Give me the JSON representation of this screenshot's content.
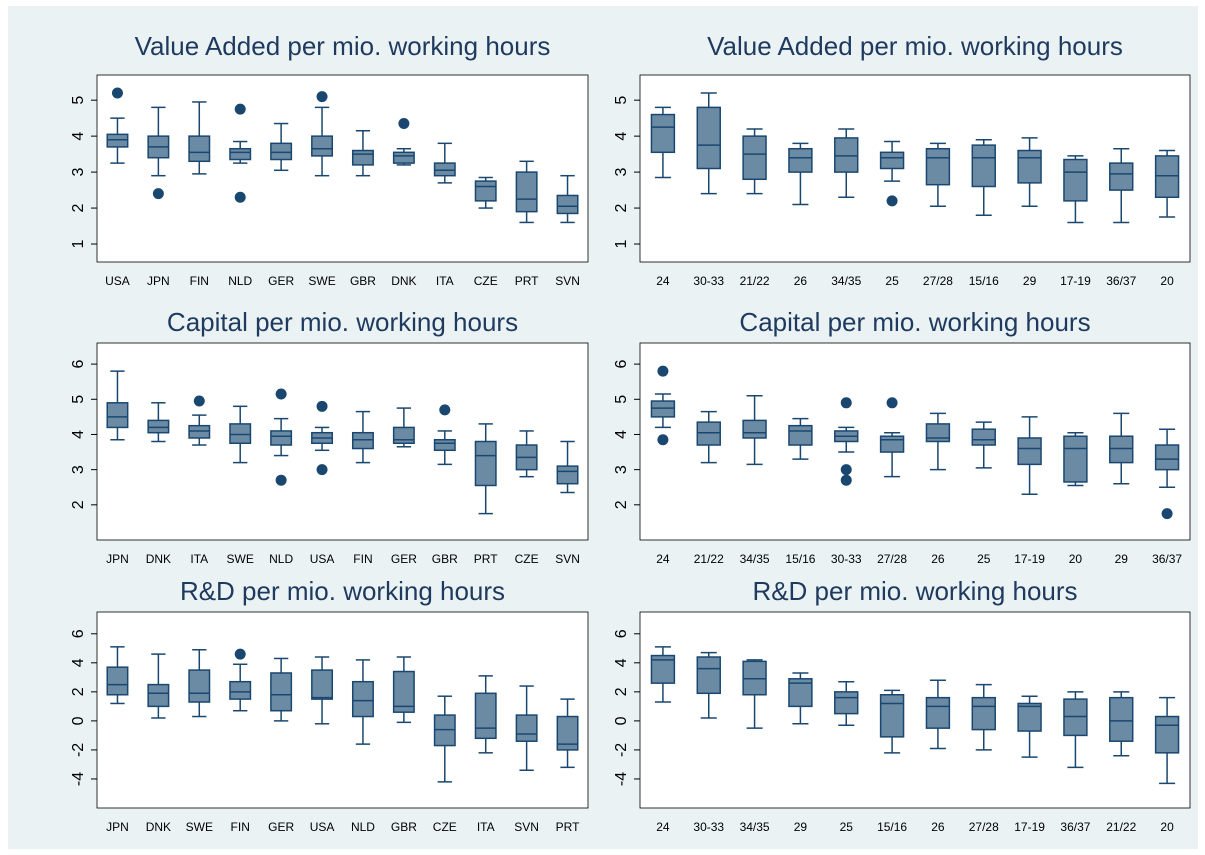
{
  "chart_data": [
    {
      "type": "box",
      "title": "Value Added per mio. working hours",
      "categories": [
        "USA",
        "JPN",
        "FIN",
        "NLD",
        "GER",
        "SWE",
        "GBR",
        "DNK",
        "ITA",
        "CZE",
        "PRT",
        "SVN"
      ],
      "whisker_low": [
        3.25,
        2.9,
        2.95,
        3.25,
        3.05,
        2.9,
        2.9,
        3.2,
        2.7,
        2.0,
        1.6,
        1.6
      ],
      "q1": [
        3.7,
        3.4,
        3.3,
        3.35,
        3.35,
        3.45,
        3.2,
        3.25,
        2.9,
        2.2,
        1.9,
        1.85
      ],
      "median": [
        3.9,
        3.7,
        3.55,
        3.55,
        3.55,
        3.65,
        3.5,
        3.45,
        3.05,
        2.6,
        2.25,
        2.05
      ],
      "q3": [
        4.05,
        4.0,
        4.0,
        3.65,
        3.8,
        4.0,
        3.6,
        3.55,
        3.25,
        2.75,
        3.0,
        2.35
      ],
      "whisker_high": [
        4.5,
        4.8,
        4.95,
        3.85,
        4.35,
        4.8,
        4.15,
        3.65,
        3.8,
        2.85,
        3.3,
        2.9
      ],
      "outliers": [
        [
          5.2
        ],
        [
          2.4
        ],
        [],
        [
          4.75,
          2.3
        ],
        [],
        [
          5.1
        ],
        [],
        [
          4.35
        ],
        [],
        [],
        [],
        []
      ],
      "ylim": [
        0.5,
        5.7
      ],
      "yticks": [
        1,
        2,
        3,
        4,
        5
      ],
      "color": "#6b8aa4",
      "line_color": "#1a476f"
    },
    {
      "type": "box",
      "title": "Value Added per mio. working hours",
      "categories": [
        "24",
        "30-33",
        "21/22",
        "26",
        "34/35",
        "25",
        "27/28",
        "15/16",
        "29",
        "17-19",
        "36/37",
        "20"
      ],
      "whisker_low": [
        2.85,
        2.4,
        2.4,
        2.1,
        2.3,
        2.75,
        2.05,
        1.8,
        2.05,
        1.6,
        1.6,
        1.75
      ],
      "q1": [
        3.55,
        3.1,
        2.8,
        3.0,
        3.0,
        3.1,
        2.65,
        2.6,
        2.7,
        2.2,
        2.5,
        2.3
      ],
      "median": [
        4.25,
        3.75,
        3.5,
        3.4,
        3.45,
        3.4,
        3.4,
        3.4,
        3.4,
        3.0,
        2.95,
        2.9
      ],
      "q3": [
        4.6,
        4.8,
        4.0,
        3.65,
        3.95,
        3.55,
        3.65,
        3.75,
        3.6,
        3.35,
        3.25,
        3.45
      ],
      "whisker_high": [
        4.8,
        5.2,
        4.2,
        3.8,
        4.2,
        3.85,
        3.8,
        3.9,
        3.95,
        3.45,
        3.65,
        3.6
      ],
      "outliers": [
        [],
        [],
        [],
        [],
        [],
        [
          2.2
        ],
        [],
        [],
        [],
        [],
        [],
        []
      ],
      "ylim": [
        0.5,
        5.7
      ],
      "yticks": [
        1,
        2,
        3,
        4,
        5
      ],
      "color": "#6b8aa4",
      "line_color": "#1a476f"
    },
    {
      "type": "box",
      "title": "Capital per mio. working hours",
      "categories": [
        "JPN",
        "DNK",
        "ITA",
        "SWE",
        "NLD",
        "USA",
        "FIN",
        "GER",
        "GBR",
        "PRT",
        "CZE",
        "SVN"
      ],
      "whisker_low": [
        3.85,
        3.8,
        3.7,
        3.2,
        3.4,
        3.55,
        3.2,
        3.65,
        3.15,
        1.75,
        2.8,
        2.35
      ],
      "q1": [
        4.2,
        4.05,
        3.9,
        3.75,
        3.7,
        3.75,
        3.6,
        3.75,
        3.55,
        2.55,
        3.0,
        2.6
      ],
      "median": [
        4.5,
        4.2,
        4.1,
        4.0,
        3.95,
        3.9,
        3.85,
        3.85,
        3.75,
        3.4,
        3.35,
        2.95
      ],
      "q3": [
        4.9,
        4.4,
        4.25,
        4.3,
        4.1,
        4.05,
        4.05,
        4.2,
        3.85,
        3.8,
        3.7,
        3.1
      ],
      "whisker_high": [
        5.8,
        4.9,
        4.55,
        4.8,
        4.45,
        4.2,
        4.65,
        4.75,
        4.1,
        4.3,
        4.1,
        3.8
      ],
      "outliers": [
        [],
        [],
        [
          4.95
        ],
        [],
        [
          5.15,
          2.7
        ],
        [
          4.8,
          3.0
        ],
        [],
        [],
        [
          4.7
        ],
        [],
        [],
        []
      ],
      "ylim": [
        1.0,
        6.6
      ],
      "yticks": [
        2,
        3,
        4,
        5,
        6
      ],
      "color": "#6b8aa4",
      "line_color": "#1a476f"
    },
    {
      "type": "box",
      "title": "Capital per mio. working hours",
      "categories": [
        "24",
        "21/22",
        "34/35",
        "15/16",
        "30-33",
        "27/28",
        "26",
        "25",
        "17-19",
        "20",
        "29",
        "36/37"
      ],
      "whisker_low": [
        4.2,
        3.2,
        3.15,
        3.3,
        3.5,
        2.8,
        3.0,
        3.05,
        2.3,
        2.55,
        2.6,
        2.5
      ],
      "q1": [
        4.5,
        3.7,
        3.9,
        3.7,
        3.8,
        3.5,
        3.8,
        3.7,
        3.15,
        2.65,
        3.2,
        3.0
      ],
      "median": [
        4.75,
        4.05,
        4.05,
        4.1,
        3.95,
        3.85,
        3.9,
        3.85,
        3.6,
        3.6,
        3.6,
        3.3
      ],
      "q3": [
        4.95,
        4.35,
        4.4,
        4.25,
        4.1,
        3.95,
        4.3,
        4.15,
        3.9,
        3.95,
        3.95,
        3.7
      ],
      "whisker_high": [
        5.15,
        4.65,
        5.1,
        4.45,
        4.2,
        4.05,
        4.6,
        4.35,
        4.5,
        4.05,
        4.6,
        4.15
      ],
      "outliers": [
        [
          5.8,
          3.85
        ],
        [],
        [],
        [],
        [
          4.9,
          3.0,
          2.7
        ],
        [
          4.9
        ],
        [],
        [],
        [],
        [],
        [],
        [
          1.75
        ]
      ],
      "ylim": [
        1.0,
        6.6
      ],
      "yticks": [
        2,
        3,
        4,
        5,
        6
      ],
      "color": "#6b8aa4",
      "line_color": "#1a476f"
    },
    {
      "type": "box",
      "title": "R&D per mio. working hours",
      "categories": [
        "JPN",
        "DNK",
        "SWE",
        "FIN",
        "GER",
        "USA",
        "NLD",
        "GBR",
        "CZE",
        "ITA",
        "SVN",
        "PRT"
      ],
      "whisker_low": [
        1.2,
        0.2,
        0.3,
        0.7,
        0.0,
        -0.2,
        -1.6,
        -0.1,
        -4.2,
        -2.2,
        -3.4,
        -3.2
      ],
      "q1": [
        1.8,
        1.0,
        1.3,
        1.5,
        0.7,
        1.5,
        0.3,
        0.6,
        -1.7,
        -1.2,
        -1.4,
        -2.0
      ],
      "median": [
        2.5,
        1.9,
        1.9,
        2.0,
        1.8,
        1.6,
        1.4,
        1.0,
        -0.6,
        -0.5,
        -0.9,
        -1.6
      ],
      "q3": [
        3.7,
        2.5,
        3.5,
        2.7,
        3.3,
        3.5,
        2.7,
        3.4,
        0.4,
        1.9,
        0.4,
        0.3
      ],
      "whisker_high": [
        5.1,
        4.6,
        4.9,
        3.9,
        4.3,
        4.4,
        4.2,
        4.4,
        1.7,
        3.1,
        2.4,
        1.5
      ],
      "outliers": [
        [],
        [],
        [],
        [
          4.6
        ],
        [],
        [],
        [],
        [],
        [],
        [],
        [],
        []
      ],
      "ylim": [
        -6,
        7.5
      ],
      "yticks": [
        -4,
        -2,
        0,
        2,
        4,
        6
      ],
      "color": "#6b8aa4",
      "line_color": "#1a476f"
    },
    {
      "type": "box",
      "title": "R&D per mio. working hours",
      "categories": [
        "24",
        "30-33",
        "34/35",
        "29",
        "25",
        "15/16",
        "26",
        "27/28",
        "17-19",
        "36/37",
        "21/22",
        "20"
      ],
      "whisker_low": [
        1.3,
        0.2,
        -0.5,
        -0.2,
        -0.3,
        -2.2,
        -1.9,
        -2.0,
        -2.5,
        -3.2,
        -2.4,
        -4.3
      ],
      "q1": [
        2.6,
        1.9,
        1.8,
        1.0,
        0.5,
        -1.1,
        -0.5,
        -0.6,
        -0.7,
        -1.0,
        -1.4,
        -2.2
      ],
      "median": [
        4.2,
        3.6,
        2.9,
        2.6,
        1.6,
        1.2,
        1.0,
        1.0,
        1.0,
        0.3,
        0.0,
        -0.3
      ],
      "q3": [
        4.5,
        4.4,
        4.1,
        2.9,
        2.0,
        1.8,
        1.6,
        1.6,
        1.2,
        1.5,
        1.6,
        0.3
      ],
      "whisker_high": [
        5.1,
        4.7,
        4.2,
        3.3,
        2.7,
        2.1,
        2.8,
        2.5,
        1.7,
        2.0,
        2.0,
        1.6
      ],
      "outliers": [
        [],
        [],
        [],
        [],
        [],
        [],
        [],
        [],
        [],
        [],
        [],
        []
      ],
      "ylim": [
        -6,
        7.5
      ],
      "yticks": [
        -4,
        -2,
        0,
        2,
        4,
        6
      ],
      "color": "#6b8aa4",
      "line_color": "#1a476f"
    }
  ]
}
